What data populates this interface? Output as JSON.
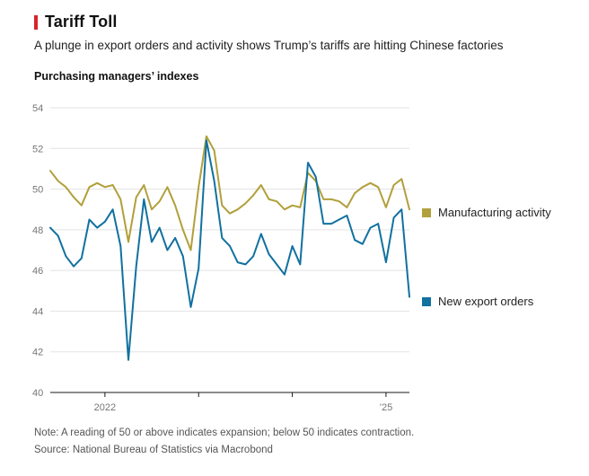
{
  "header": {
    "title": "Tariff Toll",
    "subtitle": "A plunge in export orders and activity shows Trump’s tariffs are hitting Chinese factories"
  },
  "chart": {
    "kicker": "Purchasing managers’ indexes"
  },
  "chart_data": {
    "type": "line",
    "title": "Purchasing managers’ indexes",
    "x": [
      "2021-06",
      "2021-07",
      "2021-08",
      "2021-09",
      "2021-10",
      "2021-11",
      "2021-12",
      "2022-01",
      "2022-02",
      "2022-03",
      "2022-04",
      "2022-05",
      "2022-06",
      "2022-07",
      "2022-08",
      "2022-09",
      "2022-10",
      "2022-11",
      "2022-12",
      "2023-01",
      "2023-02",
      "2023-03",
      "2023-04",
      "2023-05",
      "2023-06",
      "2023-07",
      "2023-08",
      "2023-09",
      "2023-10",
      "2023-11",
      "2023-12",
      "2024-01",
      "2024-02",
      "2024-03",
      "2024-04",
      "2024-05",
      "2024-06",
      "2024-07",
      "2024-08",
      "2024-09",
      "2024-10",
      "2024-11",
      "2024-12",
      "2025-01",
      "2025-02",
      "2025-03",
      "2025-04"
    ],
    "series": [
      {
        "name": "Manufacturing activity",
        "color": "#b1a03b",
        "values": [
          50.9,
          50.4,
          50.1,
          49.6,
          49.2,
          50.1,
          50.3,
          50.1,
          50.2,
          49.5,
          47.4,
          49.6,
          50.2,
          49.0,
          49.4,
          50.1,
          49.2,
          48.0,
          47.0,
          50.1,
          52.6,
          51.9,
          49.2,
          48.8,
          49.0,
          49.3,
          49.7,
          50.2,
          49.5,
          49.4,
          49.0,
          49.2,
          49.1,
          50.8,
          50.4,
          49.5,
          49.5,
          49.4,
          49.1,
          49.8,
          50.1,
          50.3,
          50.1,
          49.1,
          50.2,
          50.5,
          49.0
        ]
      },
      {
        "name": "New export orders",
        "color": "#11719f",
        "values": [
          48.1,
          47.7,
          46.7,
          46.2,
          46.6,
          48.5,
          48.1,
          48.4,
          49.0,
          47.2,
          41.6,
          46.2,
          49.5,
          47.4,
          48.1,
          47.0,
          47.6,
          46.7,
          44.2,
          46.1,
          52.4,
          50.4,
          47.6,
          47.2,
          46.4,
          46.3,
          46.7,
          47.8,
          46.8,
          46.3,
          45.8,
          47.2,
          46.3,
          51.3,
          50.6,
          48.3,
          48.3,
          48.5,
          48.7,
          47.5,
          47.3,
          48.1,
          48.3,
          46.4,
          48.6,
          49.0,
          44.7
        ]
      }
    ],
    "ylim": [
      40,
      54
    ],
    "yticks": [
      40,
      42,
      44,
      46,
      48,
      50,
      52,
      54
    ],
    "xticks": [
      {
        "index": 7,
        "label": "2022"
      },
      {
        "index": 19,
        "label": ""
      },
      {
        "index": 31,
        "label": ""
      },
      {
        "index": 43,
        "label": "’25"
      }
    ],
    "grid": "horizontal",
    "legend_position": "right"
  },
  "footer": {
    "note": "Note: A reading of 50 or above indicates expansion; below 50 indicates contraction.",
    "source": "Source: National Bureau of Statistics via Macrobond"
  },
  "colors": {
    "title_accent": "#d8232a",
    "manufacturing_activity": "#b1a03b",
    "new_export_orders": "#11719f"
  }
}
